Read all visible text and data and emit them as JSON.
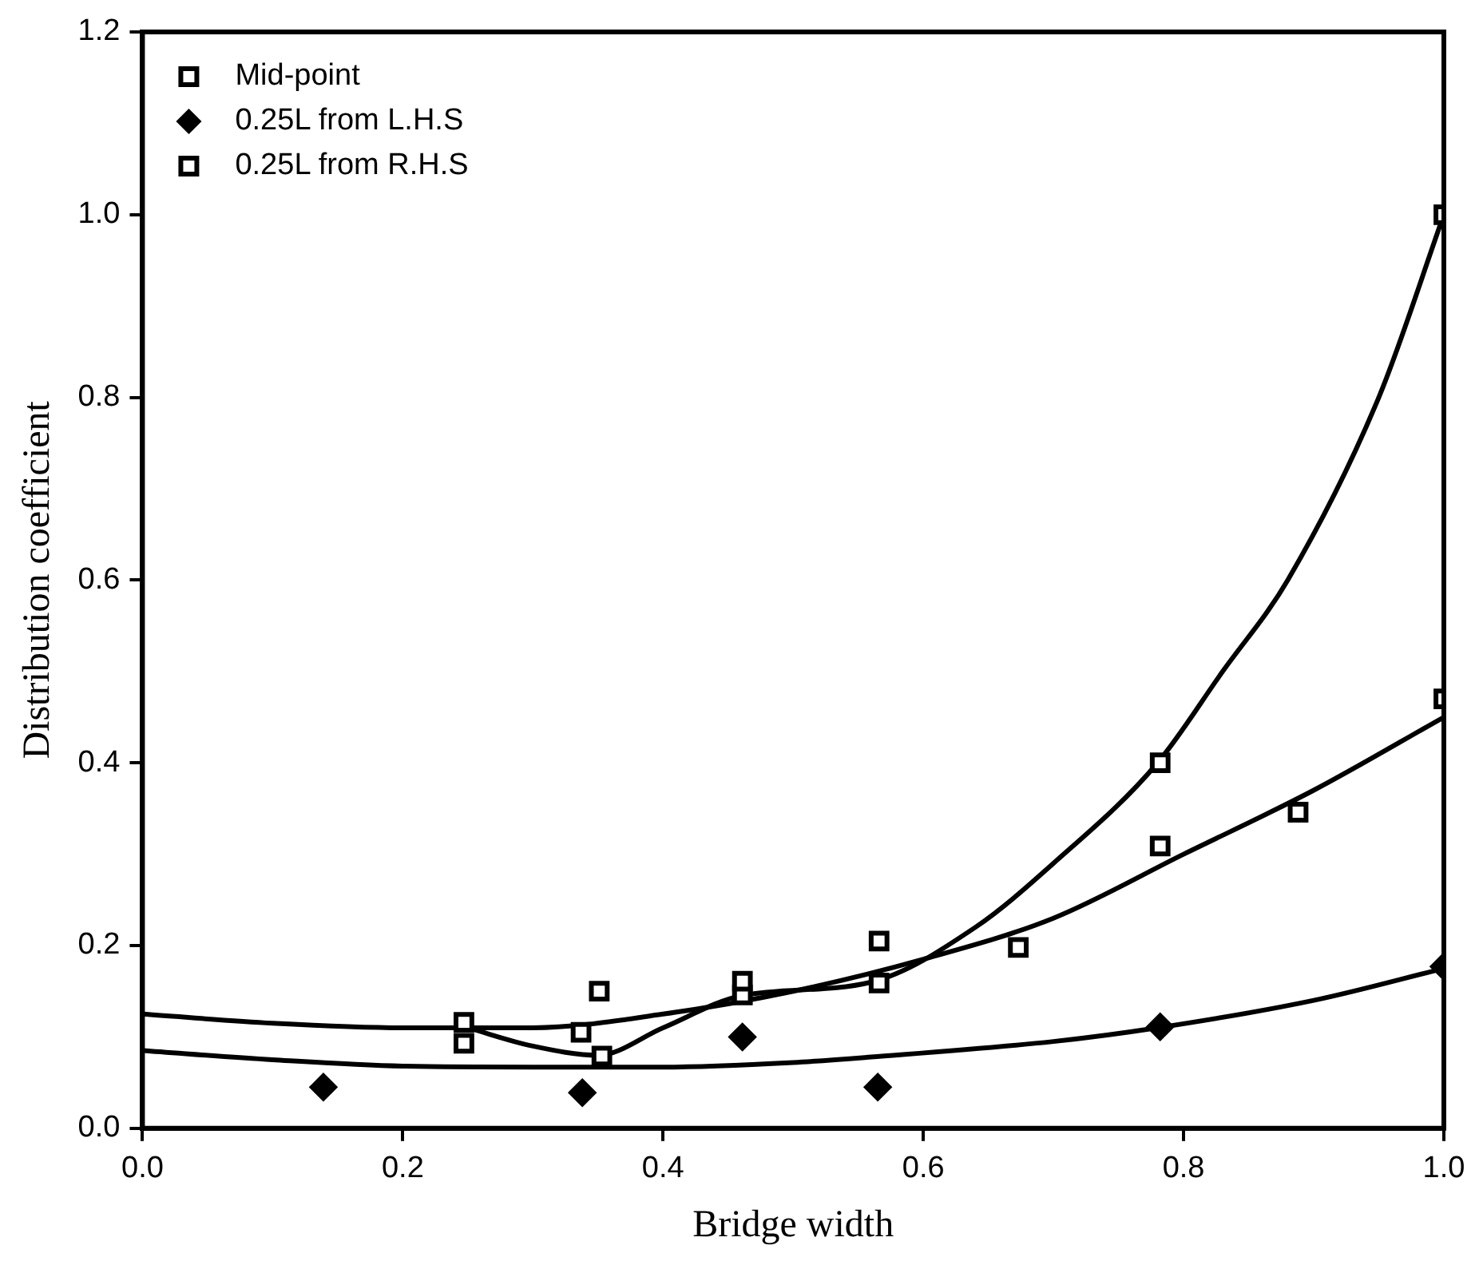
{
  "chart_data": {
    "type": "scatter",
    "xlabel": "Bridge width",
    "ylabel": "Distribution coefficient",
    "xlim": [
      0,
      1
    ],
    "ylim": [
      0,
      1.2
    ],
    "xticks": [
      {
        "value": 0,
        "label": "0.0"
      },
      0.2,
      0.4,
      0.6,
      0.8,
      {
        "value": 1,
        "label": "1.0"
      }
    ],
    "yticks": [
      {
        "value": 0,
        "label": "0.0"
      },
      0.2,
      0.4,
      0.6,
      0.8,
      {
        "value": 1,
        "label": "1.0"
      },
      1.2
    ],
    "grid": false,
    "legend": "top left",
    "series": [
      {
        "name": "Mid-point",
        "color": "#000000",
        "marker": "square",
        "x": [
          0.247,
          0.337,
          0.351,
          0.461,
          0.566,
          0.673,
          0.782,
          0.888,
          1.0
        ],
        "values": [
          0.093,
          0.105,
          0.15,
          0.161,
          0.205,
          0.198,
          0.309,
          0.346,
          0.47
        ]
      },
      {
        "name": "0.25L from L.H.S",
        "color": "#000000",
        "marker": "diamond",
        "x": [
          0.139,
          0.338,
          0.461,
          0.565,
          0.782,
          1.0
        ],
        "values": [
          0.045,
          0.039,
          0.1,
          0.045,
          0.111,
          0.177
        ]
      },
      {
        "name": "0.25L from R.H.S",
        "color": "#000000",
        "marker": "square",
        "x": [
          0.247,
          0.353,
          0.461,
          0.566,
          0.782,
          1.0
        ],
        "values": [
          0.116,
          0.079,
          0.146,
          0.159,
          0.4,
          1.0
        ]
      },
      {
        "type": "line",
        "color": "#000000",
        "marker": "none",
        "x": [
          0,
          0.1,
          0.2,
          0.3,
          0.4,
          0.5,
          0.6,
          0.7,
          0.8,
          0.9,
          1.0
        ],
        "values": [
          0.125,
          0.115,
          0.11,
          0.11,
          0.125,
          0.15,
          0.185,
          0.23,
          0.3,
          0.37,
          0.45
        ]
      },
      {
        "type": "line",
        "color": "#000000",
        "marker": "none",
        "x": [
          0.25,
          0.3,
          0.35,
          0.4,
          0.46,
          0.56,
          0.64,
          0.7,
          0.78,
          0.83,
          0.88,
          0.95,
          1.0
        ],
        "values": [
          0.11,
          0.09,
          0.08,
          0.11,
          0.145,
          0.16,
          0.22,
          0.29,
          0.4,
          0.5,
          0.6,
          0.8,
          1.0
        ]
      },
      {
        "type": "line",
        "color": "#000000",
        "marker": "none",
        "x": [
          0,
          0.1,
          0.2,
          0.3,
          0.4,
          0.5,
          0.56,
          0.7,
          0.78,
          0.9,
          1.0
        ],
        "values": [
          0.085,
          0.075,
          0.068,
          0.067,
          0.067,
          0.072,
          0.078,
          0.095,
          0.11,
          0.14,
          0.175
        ]
      }
    ]
  }
}
